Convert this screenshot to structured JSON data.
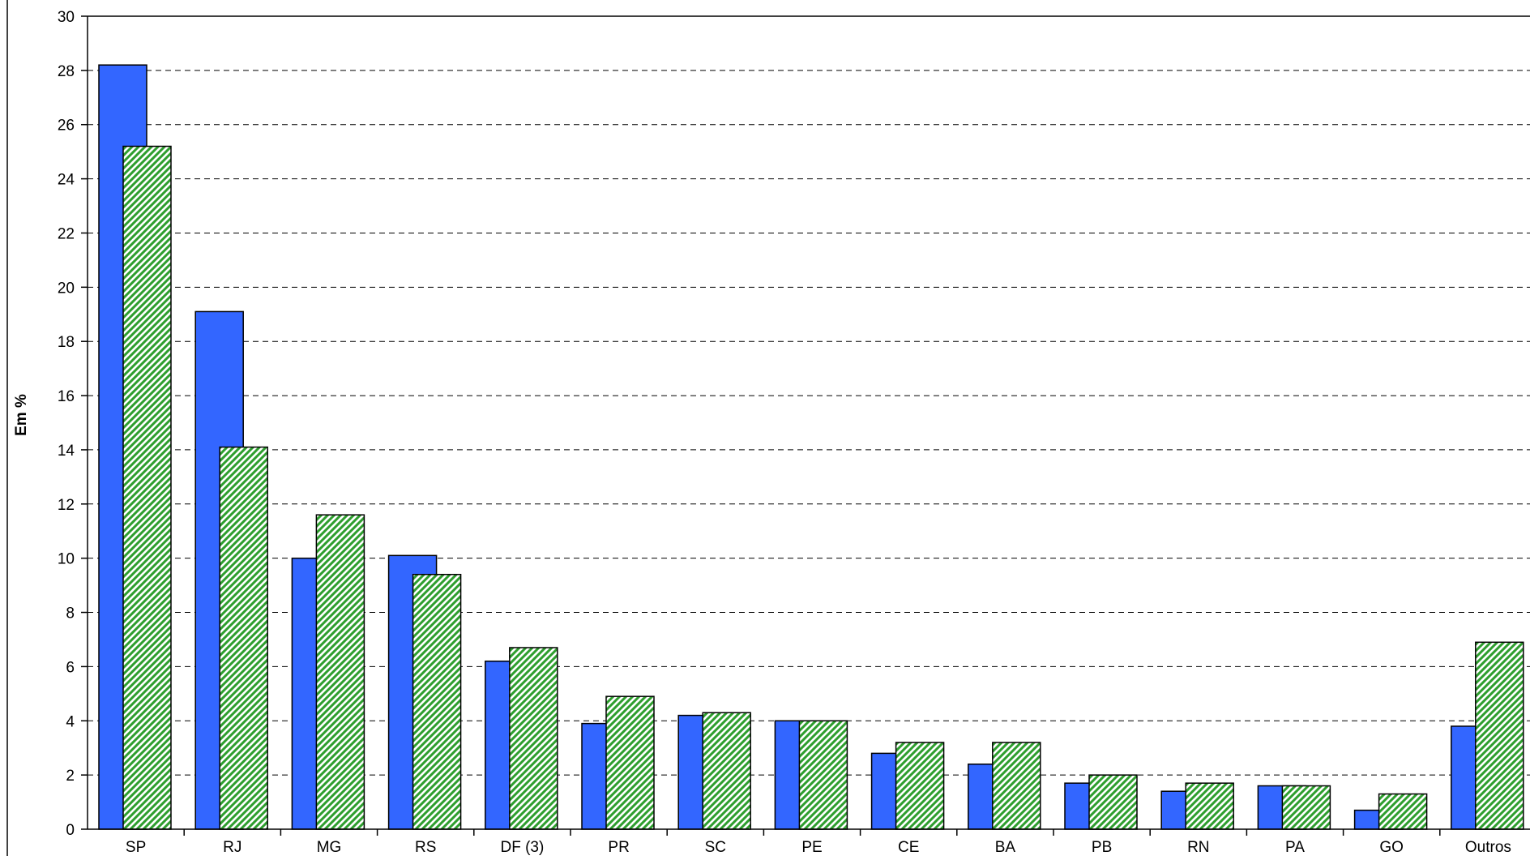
{
  "chart_data": {
    "type": "bar",
    "ylabel": "Em %",
    "xlabel": "",
    "ylim": [
      0,
      30
    ],
    "y_ticks": [
      "0",
      "2",
      "4",
      "6",
      "8",
      "10",
      "12",
      "14",
      "16",
      "18",
      "20",
      "22",
      "24",
      "26",
      "28",
      "30"
    ],
    "grid": "horizontal dashed",
    "categories": [
      "SP",
      "RJ",
      "MG",
      "RS",
      "DF (3)",
      "PR",
      "SC",
      "PE",
      "CE",
      "BA",
      "PB",
      "RN",
      "PA",
      "GO",
      "Outros"
    ],
    "series": [
      {
        "values": [
          28.2,
          19.1,
          10.0,
          10.1,
          6.2,
          3.9,
          4.2,
          4.0,
          2.8,
          2.4,
          1.7,
          1.4,
          1.6,
          0.7,
          3.8
        ],
        "color": "#3366ff",
        "pattern": "solid"
      },
      {
        "values": [
          25.2,
          14.1,
          11.6,
          9.4,
          6.7,
          4.9,
          4.3,
          4.0,
          3.2,
          3.2,
          2.0,
          1.7,
          1.6,
          1.3,
          6.9
        ],
        "color": "#33aa33",
        "pattern": "diagonal-hatch"
      }
    ]
  }
}
